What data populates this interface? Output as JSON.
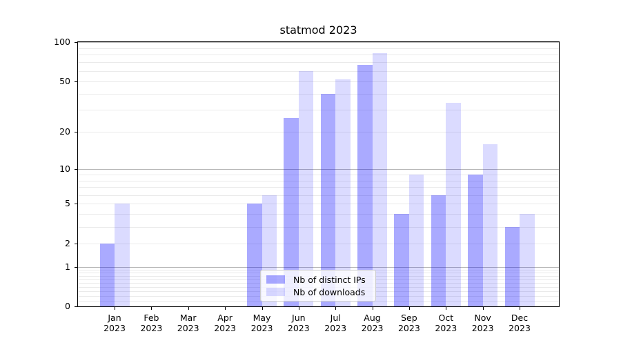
{
  "chart_data": {
    "type": "bar",
    "title": "statmod 2023",
    "categories": [
      "Jan",
      "Feb",
      "Mar",
      "Apr",
      "May",
      "Jun",
      "Jul",
      "Aug",
      "Sep",
      "Oct",
      "Nov",
      "Dec"
    ],
    "x_tick_sublabel": "2023",
    "series": [
      {
        "name": "Nb of distinct IPs",
        "color": "#0000ff55",
        "values": [
          2,
          0,
          0,
          0,
          5,
          26,
          40,
          67,
          4,
          6,
          9,
          3
        ]
      },
      {
        "name": "Nb of downloads",
        "color": "#0000ff24",
        "values": [
          5,
          0,
          0,
          0,
          6,
          60,
          52,
          82,
          9,
          34,
          16,
          4
        ]
      }
    ],
    "y_axis": {
      "scale": "log10(1+x)",
      "ticks": [
        0,
        1,
        2,
        5,
        10,
        20,
        50,
        100
      ],
      "min": 0,
      "max": 100
    },
    "xlabel": "",
    "ylabel": "",
    "legend_position": "lower center",
    "grid": {
      "on": true,
      "major_color": "#b5b5b5",
      "minor_color": "#eaeaea"
    }
  }
}
